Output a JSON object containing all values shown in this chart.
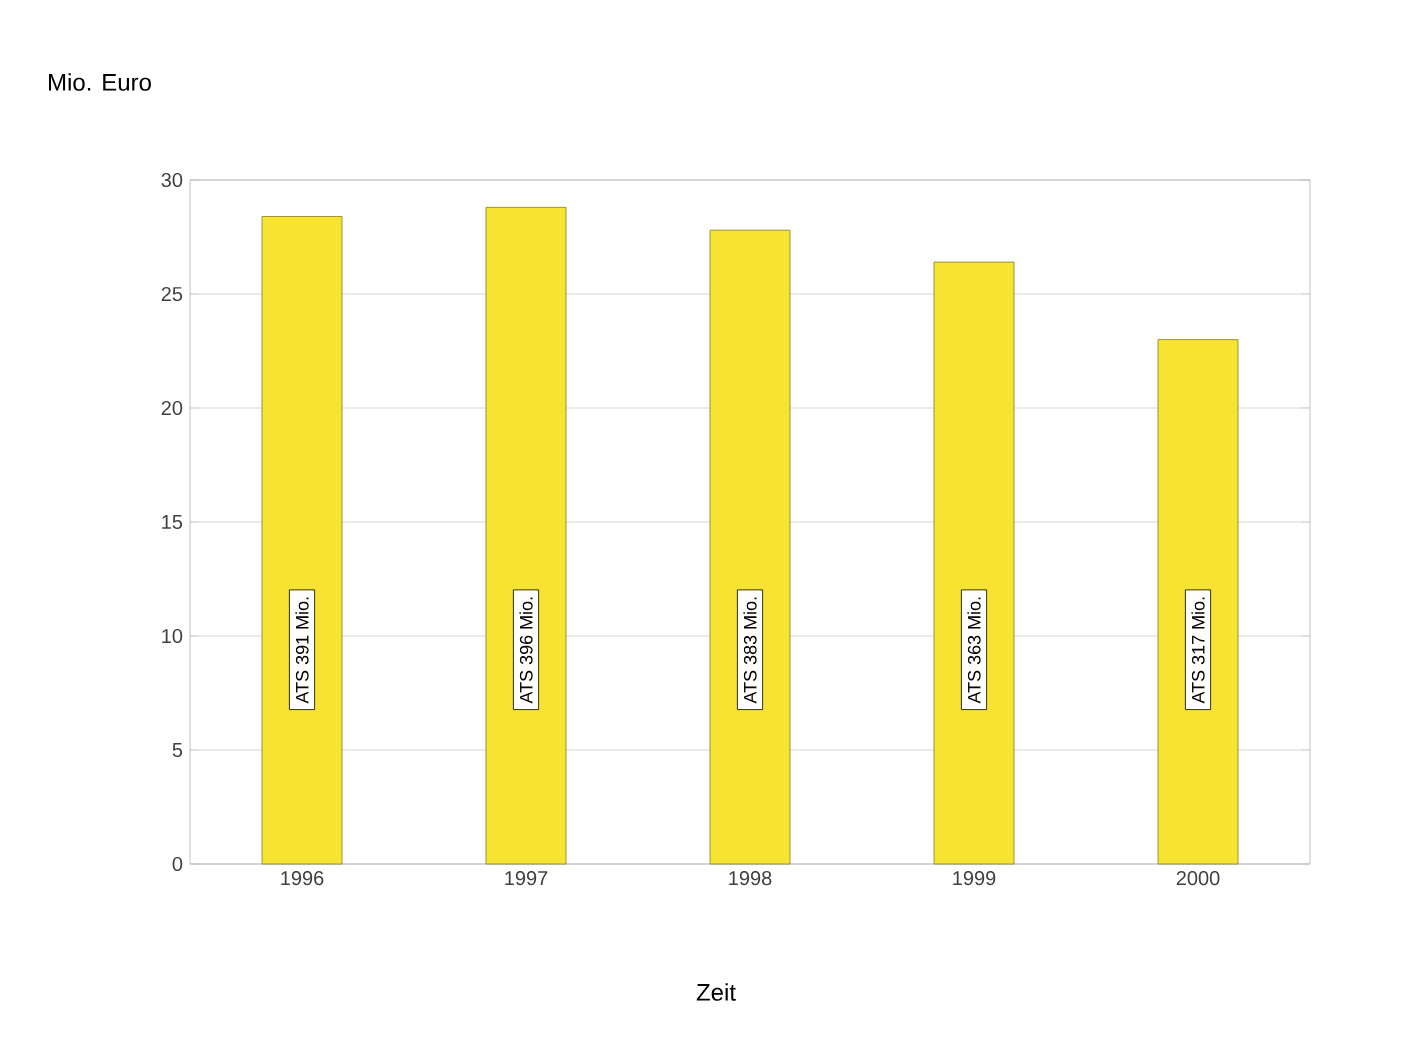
{
  "chart_data": {
    "type": "bar",
    "ylabel": "Mio. Euro",
    "xlabel": "Zeit",
    "categories": [
      "1996",
      "1997",
      "1998",
      "1999",
      "2000"
    ],
    "values": [
      28.4,
      28.8,
      27.8,
      26.4,
      23.0
    ],
    "value_labels": [
      "ATS 391 Mio.",
      "ATS 396 Mio.",
      "ATS 383 Mio.",
      "ATS 363 Mio.",
      "ATS 317 Mio."
    ],
    "color": "#f7e332",
    "ylim": [
      0,
      30
    ],
    "yticks": [
      0,
      5,
      10,
      15,
      20,
      25,
      30
    ],
    "grid": "y"
  }
}
